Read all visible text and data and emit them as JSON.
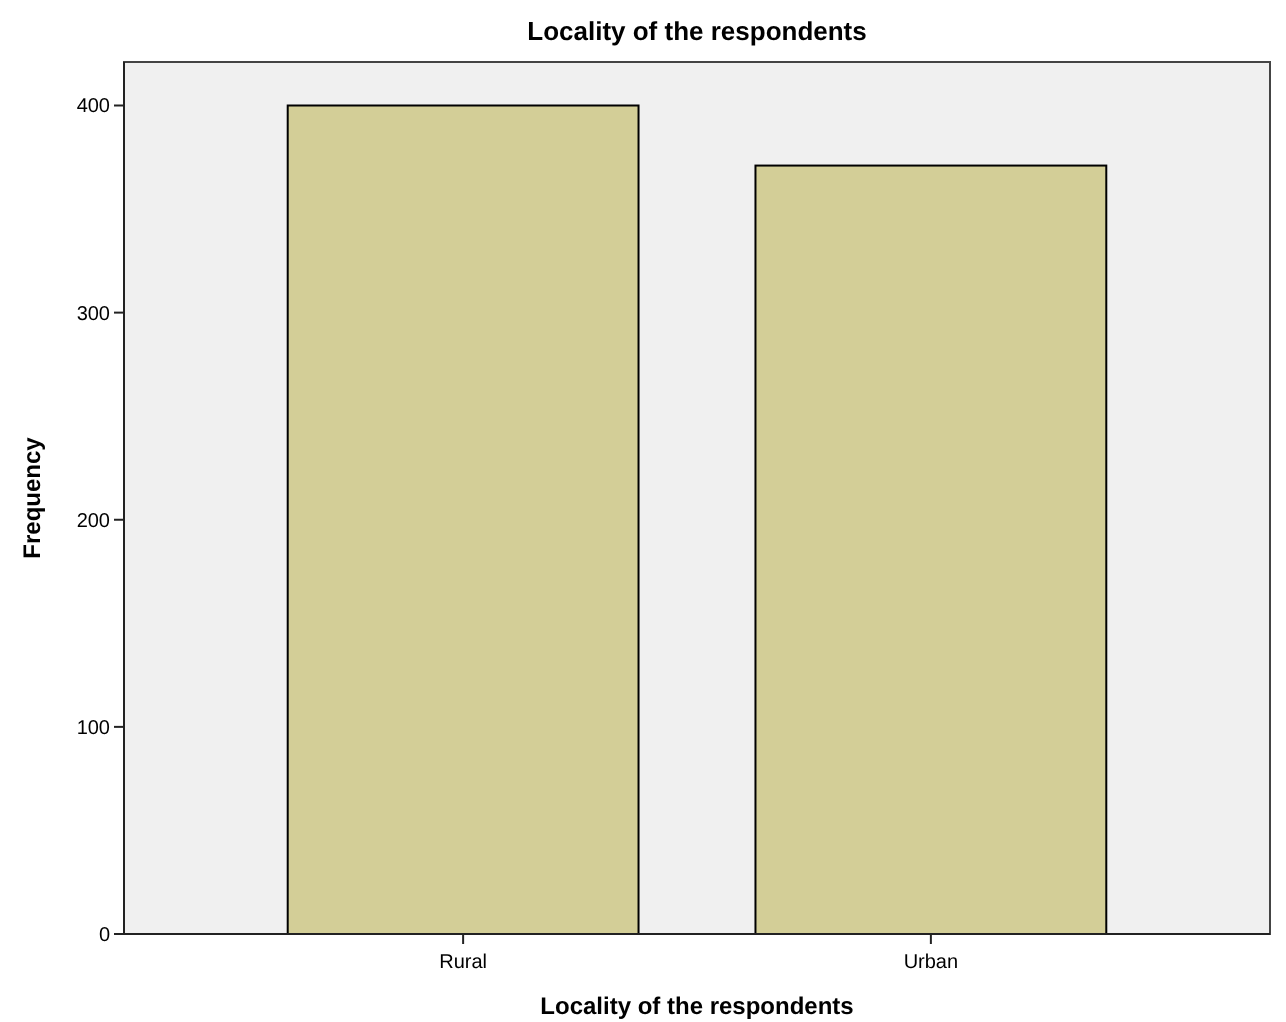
{
  "chart_data": {
    "type": "bar",
    "title": "Locality of the respondents",
    "xlabel": "Locality of the respondents",
    "ylabel": "Frequency",
    "categories": [
      "Rural",
      "Urban"
    ],
    "values": [
      400,
      371
    ],
    "color": "#d3ce97",
    "ylim": [
      0,
      421
    ],
    "yticks": [
      0,
      100,
      200,
      300,
      400
    ],
    "grid": false
  }
}
